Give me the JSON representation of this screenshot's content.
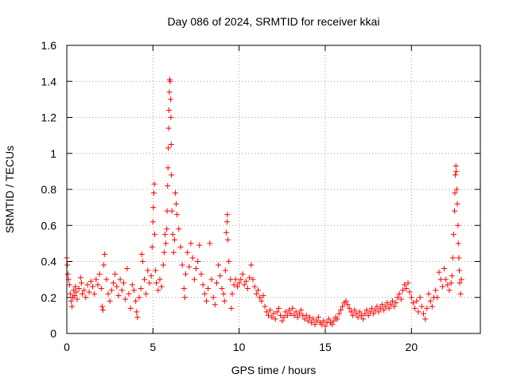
{
  "chart_data": {
    "type": "scatter",
    "title": "Day 086 of 2024, SRMTID for receiver kkai",
    "xlabel": "GPS time / hours",
    "ylabel": "SRMTID / TECUs",
    "xlim": [
      0,
      24
    ],
    "ylim": [
      0,
      1.6
    ],
    "grid": true,
    "marker": "+",
    "marker_color": "#ff0000",
    "x_ticks": [
      {
        "value": 0,
        "label": "0"
      },
      {
        "value": 5,
        "label": "5"
      },
      {
        "value": 10,
        "label": "10"
      },
      {
        "value": 15,
        "label": "15"
      },
      {
        "value": 20,
        "label": "20"
      }
    ],
    "y_ticks": [
      {
        "value": 0,
        "label": "0"
      },
      {
        "value": 0.2,
        "label": "0.2"
      },
      {
        "value": 0.4,
        "label": "0.4"
      },
      {
        "value": 0.6,
        "label": "0.6"
      },
      {
        "value": 0.8,
        "label": "0.8"
      },
      {
        "value": 1.0,
        "label": "1"
      },
      {
        "value": 1.2,
        "label": "1.2"
      },
      {
        "value": 1.4,
        "label": "1.4"
      },
      {
        "value": 1.6,
        "label": "1.6"
      }
    ],
    "series": [
      {
        "name": "kkai",
        "points": [
          [
            0.0,
            0.42
          ],
          [
            0.03,
            0.38
          ],
          [
            0.06,
            0.33
          ],
          [
            0.1,
            0.3
          ],
          [
            0.15,
            0.27
          ],
          [
            0.2,
            0.22
          ],
          [
            0.25,
            0.18
          ],
          [
            0.3,
            0.15
          ],
          [
            0.35,
            0.2
          ],
          [
            0.4,
            0.24
          ],
          [
            0.45,
            0.21
          ],
          [
            0.5,
            0.26
          ],
          [
            0.55,
            0.23
          ],
          [
            0.6,
            0.19
          ],
          [
            0.7,
            0.25
          ],
          [
            0.8,
            0.31
          ],
          [
            0.85,
            0.28
          ],
          [
            0.9,
            0.22
          ],
          [
            1.0,
            0.24
          ],
          [
            1.1,
            0.2
          ],
          [
            1.2,
            0.27
          ],
          [
            1.3,
            0.23
          ],
          [
            1.4,
            0.29
          ],
          [
            1.5,
            0.26
          ],
          [
            1.6,
            0.22
          ],
          [
            1.7,
            0.3
          ],
          [
            1.8,
            0.27
          ],
          [
            1.9,
            0.33
          ],
          [
            2.0,
            0.25
          ],
          [
            2.05,
            0.15
          ],
          [
            2.1,
            0.13
          ],
          [
            2.15,
            0.38
          ],
          [
            2.2,
            0.44
          ],
          [
            2.3,
            0.3
          ],
          [
            2.4,
            0.22
          ],
          [
            2.5,
            0.18
          ],
          [
            2.6,
            0.24
          ],
          [
            2.7,
            0.28
          ],
          [
            2.8,
            0.33
          ],
          [
            2.9,
            0.26
          ],
          [
            3.0,
            0.21
          ],
          [
            3.1,
            0.3
          ],
          [
            3.2,
            0.24
          ],
          [
            3.3,
            0.28
          ],
          [
            3.4,
            0.19
          ],
          [
            3.5,
            0.36
          ],
          [
            3.6,
            0.22
          ],
          [
            3.7,
            0.14
          ],
          [
            3.8,
            0.27
          ],
          [
            3.9,
            0.24
          ],
          [
            4.0,
            0.18
          ],
          [
            4.05,
            0.12
          ],
          [
            4.1,
            0.09
          ],
          [
            4.2,
            0.2
          ],
          [
            4.3,
            0.25
          ],
          [
            4.35,
            0.44
          ],
          [
            4.4,
            0.4
          ],
          [
            4.5,
            0.3
          ],
          [
            4.6,
            0.22
          ],
          [
            4.7,
            0.35
          ],
          [
            4.8,
            0.28
          ],
          [
            4.9,
            0.32
          ],
          [
            4.95,
            0.48
          ],
          [
            5.0,
            0.62
          ],
          [
            5.02,
            0.7
          ],
          [
            5.05,
            0.78
          ],
          [
            5.08,
            0.83
          ],
          [
            5.1,
            0.55
          ],
          [
            5.15,
            0.35
          ],
          [
            5.2,
            0.28
          ],
          [
            5.3,
            0.24
          ],
          [
            5.4,
            0.3
          ],
          [
            5.5,
            0.26
          ],
          [
            5.6,
            0.38
          ],
          [
            5.65,
            0.45
          ],
          [
            5.7,
            0.55
          ],
          [
            5.75,
            0.5
          ],
          [
            5.8,
            0.58
          ],
          [
            5.82,
            0.68
          ],
          [
            5.85,
            0.82
          ],
          [
            5.87,
            0.92
          ],
          [
            5.89,
            1.03
          ],
          [
            5.91,
            1.14
          ],
          [
            5.93,
            1.24
          ],
          [
            5.95,
            1.34
          ],
          [
            5.97,
            1.41
          ],
          [
            6.0,
            1.4
          ],
          [
            6.02,
            1.3
          ],
          [
            6.04,
            1.2
          ],
          [
            6.06,
            1.05
          ],
          [
            6.08,
            0.88
          ],
          [
            6.1,
            0.68
          ],
          [
            6.15,
            0.55
          ],
          [
            6.2,
            0.45
          ],
          [
            6.25,
            0.52
          ],
          [
            6.3,
            0.78
          ],
          [
            6.35,
            0.72
          ],
          [
            6.4,
            0.66
          ],
          [
            6.5,
            0.58
          ],
          [
            6.6,
            0.48
          ],
          [
            6.7,
            0.38
          ],
          [
            6.8,
            0.25
          ],
          [
            6.85,
            0.2
          ],
          [
            6.9,
            0.33
          ],
          [
            7.0,
            0.45
          ],
          [
            7.1,
            0.37
          ],
          [
            7.2,
            0.5
          ],
          [
            7.3,
            0.42
          ],
          [
            7.4,
            0.3
          ],
          [
            7.5,
            0.36
          ],
          [
            7.6,
            0.4
          ],
          [
            7.7,
            0.49
          ],
          [
            7.8,
            0.33
          ],
          [
            7.9,
            0.27
          ],
          [
            8.0,
            0.22
          ],
          [
            8.1,
            0.18
          ],
          [
            8.2,
            0.25
          ],
          [
            8.3,
            0.5
          ],
          [
            8.4,
            0.3
          ],
          [
            8.5,
            0.2
          ],
          [
            8.6,
            0.16
          ],
          [
            8.7,
            0.28
          ],
          [
            8.8,
            0.38
          ],
          [
            8.9,
            0.32
          ],
          [
            9.0,
            0.25
          ],
          [
            9.1,
            0.22
          ],
          [
            9.15,
            0.18
          ],
          [
            9.2,
            0.35
          ],
          [
            9.25,
            0.56
          ],
          [
            9.3,
            0.62
          ],
          [
            9.32,
            0.66
          ],
          [
            9.35,
            0.52
          ],
          [
            9.4,
            0.4
          ],
          [
            9.5,
            0.3
          ],
          [
            9.55,
            0.14
          ],
          [
            9.6,
            0.22
          ],
          [
            9.7,
            0.27
          ],
          [
            9.8,
            0.3
          ],
          [
            9.9,
            0.26
          ],
          [
            10.0,
            0.28
          ],
          [
            10.1,
            0.3
          ],
          [
            10.2,
            0.33
          ],
          [
            10.3,
            0.27
          ],
          [
            10.4,
            0.29
          ],
          [
            10.5,
            0.25
          ],
          [
            10.6,
            0.31
          ],
          [
            10.7,
            0.38
          ],
          [
            10.8,
            0.3
          ],
          [
            10.9,
            0.26
          ],
          [
            11.0,
            0.22
          ],
          [
            11.1,
            0.24
          ],
          [
            11.2,
            0.2
          ],
          [
            11.3,
            0.18
          ],
          [
            11.4,
            0.21
          ],
          [
            11.5,
            0.15
          ],
          [
            11.6,
            0.12
          ],
          [
            11.7,
            0.1
          ],
          [
            11.8,
            0.13
          ],
          [
            11.9,
            0.09
          ],
          [
            12.0,
            0.11
          ],
          [
            12.1,
            0.08
          ],
          [
            12.2,
            0.12
          ],
          [
            12.3,
            0.14
          ],
          [
            12.4,
            0.1
          ],
          [
            12.5,
            0.07
          ],
          [
            12.6,
            0.09
          ],
          [
            12.7,
            0.12
          ],
          [
            12.8,
            0.1
          ],
          [
            12.9,
            0.13
          ],
          [
            13.0,
            0.11
          ],
          [
            13.1,
            0.14
          ],
          [
            13.2,
            0.1
          ],
          [
            13.3,
            0.12
          ],
          [
            13.4,
            0.09
          ],
          [
            13.5,
            0.11
          ],
          [
            13.6,
            0.13
          ],
          [
            13.7,
            0.1
          ],
          [
            13.8,
            0.08
          ],
          [
            13.9,
            0.1
          ],
          [
            14.0,
            0.07
          ],
          [
            14.1,
            0.09
          ],
          [
            14.2,
            0.06
          ],
          [
            14.3,
            0.08
          ],
          [
            14.4,
            0.05
          ],
          [
            14.5,
            0.07
          ],
          [
            14.6,
            0.09
          ],
          [
            14.7,
            0.06
          ],
          [
            14.8,
            0.05
          ],
          [
            14.9,
            0.07
          ],
          [
            15.0,
            0.04
          ],
          [
            15.1,
            0.06
          ],
          [
            15.2,
            0.08
          ],
          [
            15.3,
            0.06
          ],
          [
            15.4,
            0.05
          ],
          [
            15.5,
            0.07
          ],
          [
            15.6,
            0.09
          ],
          [
            15.7,
            0.08
          ],
          [
            15.8,
            0.11
          ],
          [
            15.9,
            0.13
          ],
          [
            16.0,
            0.15
          ],
          [
            16.1,
            0.17
          ],
          [
            16.2,
            0.18
          ],
          [
            16.3,
            0.16
          ],
          [
            16.4,
            0.14
          ],
          [
            16.5,
            0.12
          ],
          [
            16.6,
            0.1
          ],
          [
            16.7,
            0.13
          ],
          [
            16.8,
            0.11
          ],
          [
            16.9,
            0.09
          ],
          [
            17.0,
            0.12
          ],
          [
            17.1,
            0.1
          ],
          [
            17.2,
            0.08
          ],
          [
            17.3,
            0.11
          ],
          [
            17.4,
            0.13
          ],
          [
            17.5,
            0.1
          ],
          [
            17.6,
            0.12
          ],
          [
            17.7,
            0.14
          ],
          [
            17.8,
            0.11
          ],
          [
            17.9,
            0.13
          ],
          [
            18.0,
            0.15
          ],
          [
            18.1,
            0.12
          ],
          [
            18.2,
            0.14
          ],
          [
            18.3,
            0.16
          ],
          [
            18.4,
            0.13
          ],
          [
            18.5,
            0.15
          ],
          [
            18.6,
            0.17
          ],
          [
            18.7,
            0.14
          ],
          [
            18.8,
            0.16
          ],
          [
            18.9,
            0.18
          ],
          [
            19.0,
            0.15
          ],
          [
            19.1,
            0.17
          ],
          [
            19.2,
            0.2
          ],
          [
            19.3,
            0.22
          ],
          [
            19.4,
            0.19
          ],
          [
            19.5,
            0.24
          ],
          [
            19.6,
            0.27
          ],
          [
            19.7,
            0.25
          ],
          [
            19.8,
            0.28
          ],
          [
            19.9,
            0.23
          ],
          [
            20.0,
            0.2
          ],
          [
            20.1,
            0.17
          ],
          [
            20.2,
            0.14
          ],
          [
            20.3,
            0.18
          ],
          [
            20.4,
            0.12
          ],
          [
            20.5,
            0.2
          ],
          [
            20.6,
            0.15
          ],
          [
            20.7,
            0.11
          ],
          [
            20.8,
            0.08
          ],
          [
            20.9,
            0.14
          ],
          [
            21.0,
            0.22
          ],
          [
            21.1,
            0.18
          ],
          [
            21.2,
            0.15
          ],
          [
            21.3,
            0.2
          ],
          [
            21.4,
            0.24
          ],
          [
            21.5,
            0.2
          ],
          [
            21.6,
            0.34
          ],
          [
            21.7,
            0.3
          ],
          [
            21.8,
            0.26
          ],
          [
            21.9,
            0.36
          ],
          [
            22.0,
            0.3
          ],
          [
            22.1,
            0.27
          ],
          [
            22.2,
            0.24
          ],
          [
            22.3,
            0.28
          ],
          [
            22.35,
            0.32
          ],
          [
            22.4,
            0.42
          ],
          [
            22.45,
            0.55
          ],
          [
            22.5,
            0.68
          ],
          [
            22.52,
            0.78
          ],
          [
            22.55,
            0.88
          ],
          [
            22.58,
            0.93
          ],
          [
            22.6,
            0.9
          ],
          [
            22.63,
            0.8
          ],
          [
            22.66,
            0.72
          ],
          [
            22.7,
            0.6
          ],
          [
            22.72,
            0.5
          ],
          [
            22.75,
            0.42
          ],
          [
            22.78,
            0.35
          ],
          [
            22.8,
            0.28
          ],
          [
            22.85,
            0.22
          ],
          [
            22.9,
            0.3
          ]
        ]
      }
    ]
  }
}
